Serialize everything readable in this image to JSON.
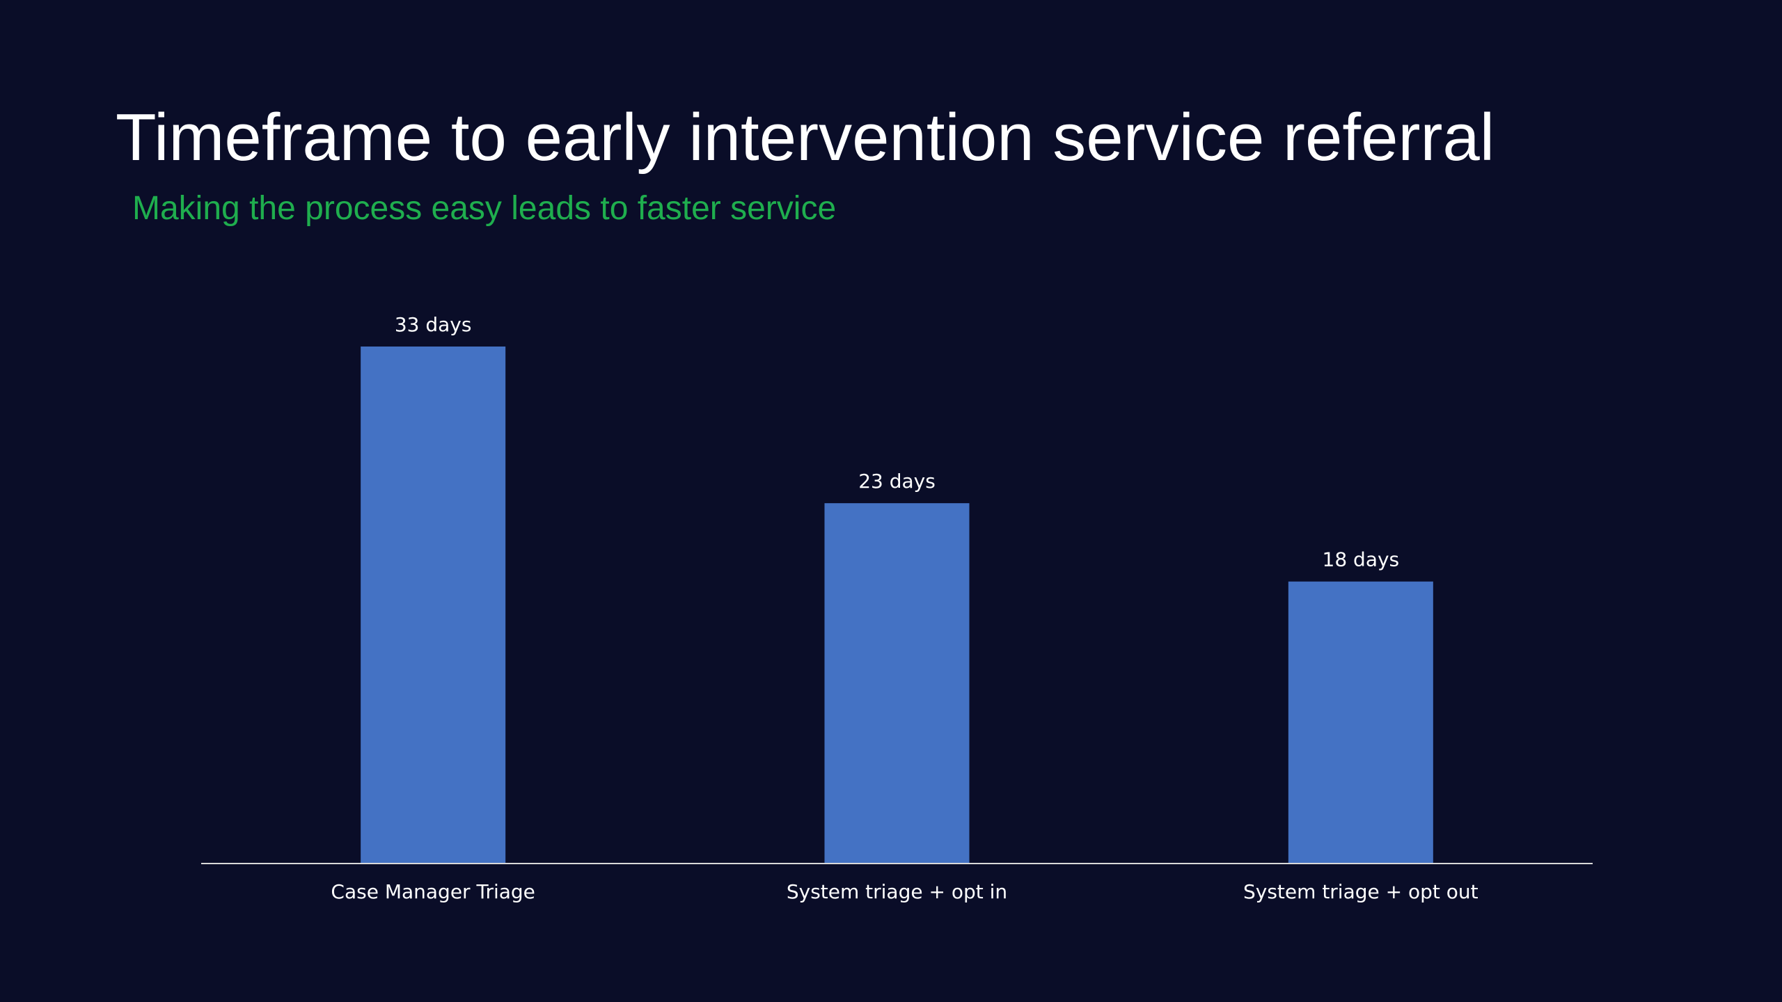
{
  "slide": {
    "title": "Timeframe to early intervention service referral",
    "subtitle": "Making the process easy leads to faster service"
  },
  "colors": {
    "background": "#0a0d28",
    "title": "#ffffff",
    "subtitle": "#1fae4e",
    "bar": "#4472c4",
    "axis": "#d9d9d9"
  },
  "chart_data": {
    "type": "bar",
    "categories": [
      "Case Manager Triage",
      "System triage + opt in",
      "System triage + opt out"
    ],
    "values": [
      33,
      23,
      18
    ],
    "data_labels": [
      "33 days",
      "23 days",
      "18 days"
    ],
    "unit": "days",
    "ylim": [
      0,
      33
    ],
    "grid": false,
    "legend": "none"
  }
}
